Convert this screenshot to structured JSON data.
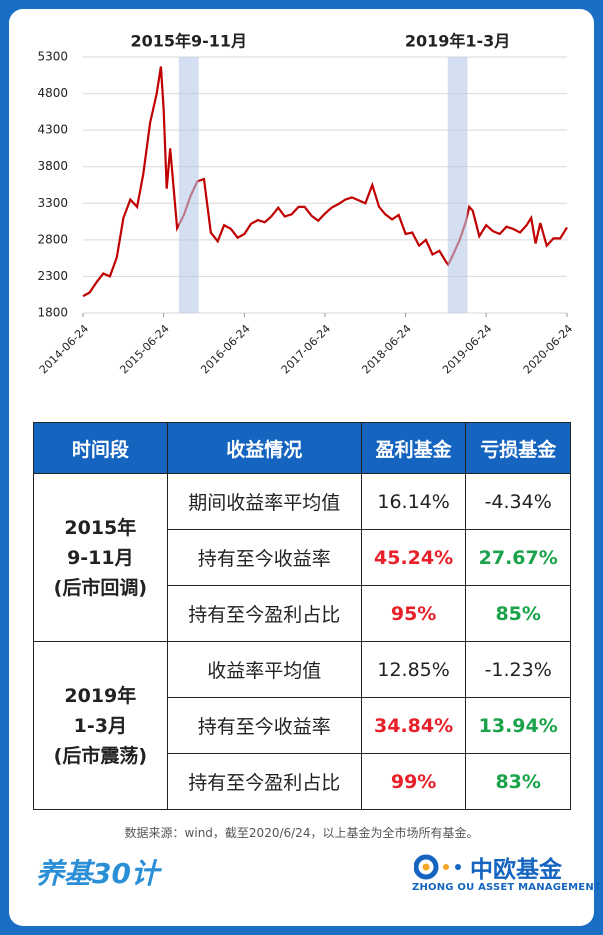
{
  "chart_data": {
    "type": "line",
    "x": [
      "2014-06-24",
      "2014-07-24",
      "2014-08-24",
      "2014-09-24",
      "2014-10-24",
      "2014-11-24",
      "2014-12-24",
      "2015-01-24",
      "2015-02-24",
      "2015-03-24",
      "2015-04-24",
      "2015-05-24",
      "2015-06-12",
      "2015-06-24",
      "2015-07-08",
      "2015-07-24",
      "2015-08-24",
      "2015-09-24",
      "2015-10-24",
      "2015-11-24",
      "2015-12-24",
      "2016-01-24",
      "2016-02-24",
      "2016-03-24",
      "2016-04-24",
      "2016-05-24",
      "2016-06-24",
      "2016-07-24",
      "2016-08-24",
      "2016-09-24",
      "2016-10-24",
      "2016-11-24",
      "2016-12-24",
      "2017-01-24",
      "2017-02-24",
      "2017-03-24",
      "2017-04-24",
      "2017-05-24",
      "2017-06-24",
      "2017-07-24",
      "2017-08-24",
      "2017-09-24",
      "2017-10-24",
      "2017-11-24",
      "2017-12-24",
      "2018-01-24",
      "2018-02-24",
      "2018-03-24",
      "2018-04-24",
      "2018-05-24",
      "2018-06-24",
      "2018-07-24",
      "2018-08-24",
      "2018-09-24",
      "2018-10-24",
      "2018-11-24",
      "2018-12-24",
      "2019-01-03",
      "2019-01-24",
      "2019-02-24",
      "2019-03-24",
      "2019-04-08",
      "2019-04-24",
      "2019-05-24",
      "2019-06-24",
      "2019-07-24",
      "2019-08-24",
      "2019-09-24",
      "2019-10-24",
      "2019-11-24",
      "2019-12-24",
      "2020-01-14",
      "2020-02-03",
      "2020-02-24",
      "2020-03-24",
      "2020-04-24",
      "2020-05-24",
      "2020-06-24"
    ],
    "series": [
      {
        "color": "#c00000",
        "values": [
          2030,
          2080,
          2220,
          2340,
          2300,
          2560,
          3100,
          3350,
          3250,
          3700,
          4400,
          4800,
          5170,
          4600,
          3500,
          4050,
          2960,
          3140,
          3400,
          3600,
          3630,
          2900,
          2780,
          3000,
          2950,
          2830,
          2880,
          3020,
          3070,
          3040,
          3120,
          3240,
          3120,
          3150,
          3250,
          3250,
          3130,
          3060,
          3160,
          3240,
          3290,
          3350,
          3380,
          3340,
          3300,
          3550,
          3250,
          3150,
          3080,
          3140,
          2880,
          2900,
          2720,
          2800,
          2600,
          2650,
          2500,
          2460,
          2590,
          2800,
          3050,
          3250,
          3200,
          2850,
          3000,
          2920,
          2880,
          2980,
          2950,
          2900,
          3000,
          3100,
          2750,
          3030,
          2720,
          2820,
          2820,
          2970
        ]
      }
    ],
    "xlim": [
      "2014-06-24",
      "2020-06-24"
    ],
    "xticks": [
      "2014-06-24",
      "2015-06-24",
      "2016-06-24",
      "2017-06-24",
      "2018-06-24",
      "2019-06-24",
      "2020-06-24"
    ],
    "ylim": [
      1800,
      5300
    ],
    "yticks": [
      1800,
      2300,
      2800,
      3300,
      3800,
      4300,
      4800,
      5300
    ],
    "grid": true,
    "highlights": [
      {
        "label": "2015年9-11月",
        "start": "2015-09-01",
        "end": "2015-11-30"
      },
      {
        "label": "2019年1-3月",
        "start": "2019-01-01",
        "end": "2019-03-31"
      }
    ],
    "highlight_color": "#b7cbea"
  },
  "table": {
    "header": [
      "时间段",
      "收益情况",
      "盈利基金",
      "亏损基金"
    ],
    "groups": [
      {
        "label": [
          "2015年",
          "9-11月",
          "(后市回调)"
        ],
        "rows": [
          [
            "期间收益率平均值",
            "16.14%",
            "-4.34%"
          ],
          [
            "持有至今收益率",
            "45.24%",
            "27.67%"
          ],
          [
            "持有至今盈利占比",
            "95%",
            "85%"
          ]
        ]
      },
      {
        "label": [
          "2019年",
          "1-3月",
          "(后市震荡)"
        ],
        "rows": [
          [
            "收益率平均值",
            "12.85%",
            "-1.23%"
          ],
          [
            "持有至今收益率",
            "34.84%",
            "13.94%"
          ],
          [
            "持有至今盈利占比",
            "99%",
            "83%"
          ]
        ]
      }
    ]
  },
  "footer": {
    "note": "数据来源：wind，截至2020/6/24，以上基金为全市场所有基金。",
    "logo_left": "养基30计",
    "logo_right": "中欧基金",
    "logo_right_sub": "ZHONG OU ASSET MANAGEMENT"
  }
}
